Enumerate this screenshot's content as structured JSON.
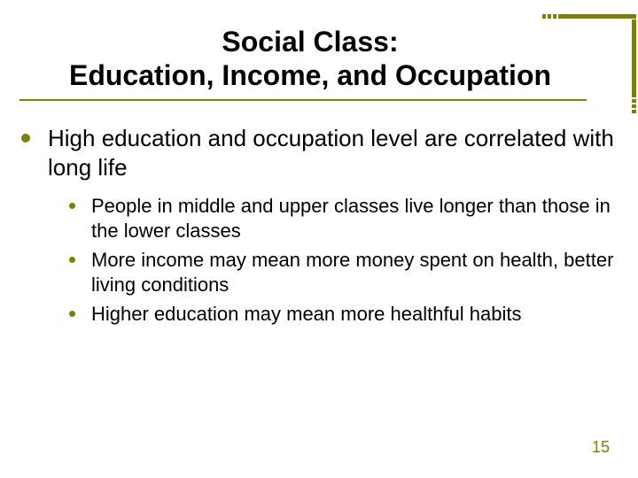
{
  "colors": {
    "accent": "#808000",
    "text": "#000000",
    "background": "#ffffff"
  },
  "typography": {
    "title_fontsize_pt": 32,
    "level1_fontsize_pt": 26,
    "level2_fontsize_pt": 22,
    "pagenum_fontsize_pt": 18,
    "font_family": "Arial"
  },
  "title": {
    "line1": "Social Class:",
    "line2": "Education, Income, and Occupation"
  },
  "bullets": {
    "l1": "High education and occupation level are correlated with long life",
    "l2": [
      "People in middle and upper classes live longer than those in the lower classes",
      "More income may mean more money spent on health, better living conditions",
      "Higher education may mean more healthful habits"
    ]
  },
  "page_number": "15"
}
